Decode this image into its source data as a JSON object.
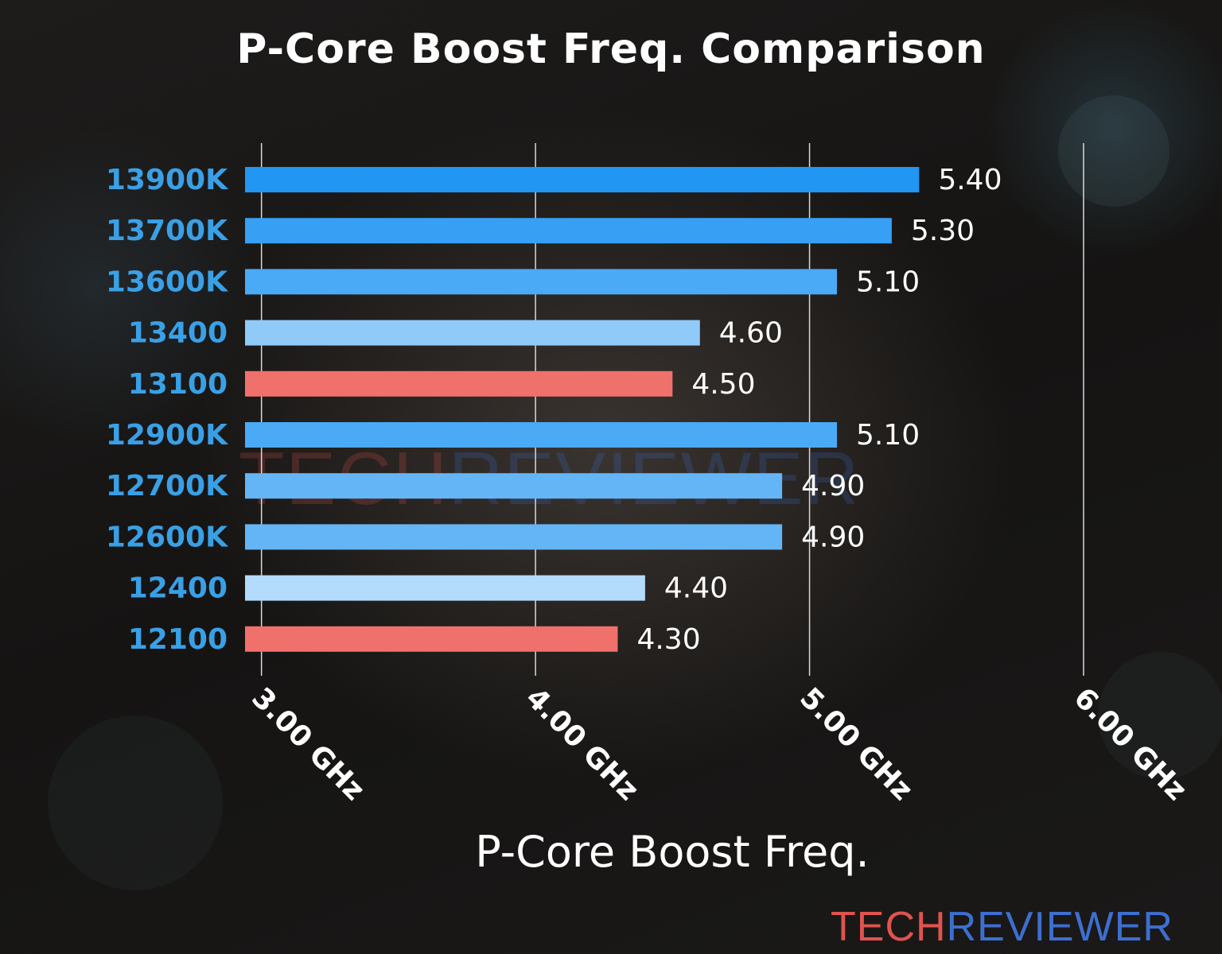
{
  "chart_data": {
    "type": "bar",
    "orientation": "horizontal",
    "title": "P-Core Boost Freq. Comparison",
    "xlabel": "P-Core Boost Freq.",
    "ylabel": "",
    "xlim": [
      2.94,
      6.0
    ],
    "x_ticks": [
      3.0,
      4.0,
      5.0,
      6.0
    ],
    "x_tick_labels": [
      "3.00 GHz",
      "4.00 GHz",
      "5.00 GHz",
      "6.00 GHz"
    ],
    "grid": "vertical",
    "categories": [
      "13900K",
      "13700K",
      "13600K",
      "13400",
      "13100",
      "12900K",
      "12700K",
      "12600K",
      "12400",
      "12100"
    ],
    "values": [
      5.4,
      5.3,
      5.1,
      4.6,
      4.5,
      5.1,
      4.9,
      4.9,
      4.4,
      4.3
    ],
    "value_labels": [
      "5.40",
      "5.30",
      "5.10",
      "4.60",
      "4.50",
      "5.10",
      "4.90",
      "4.90",
      "4.40",
      "4.30"
    ],
    "bar_colors": [
      "#2196f3",
      "#37a0f4",
      "#4aaaf5",
      "#90caf9",
      "#f0716c",
      "#4aaaf5",
      "#64b5f6",
      "#64b5f6",
      "#b3dbfb",
      "#f0716c"
    ],
    "category_label_color": "#3aa0e6",
    "text_color": "#ffffff"
  },
  "watermark": {
    "part1": "TECH",
    "part2": "REVIEWER",
    "color1": "#e0534e",
    "color2": "#3d6fd0"
  },
  "logo": {
    "part1": "TECH",
    "part2": "REVIEWER",
    "color1": "#e0534e",
    "color2": "#3d6fd0"
  }
}
